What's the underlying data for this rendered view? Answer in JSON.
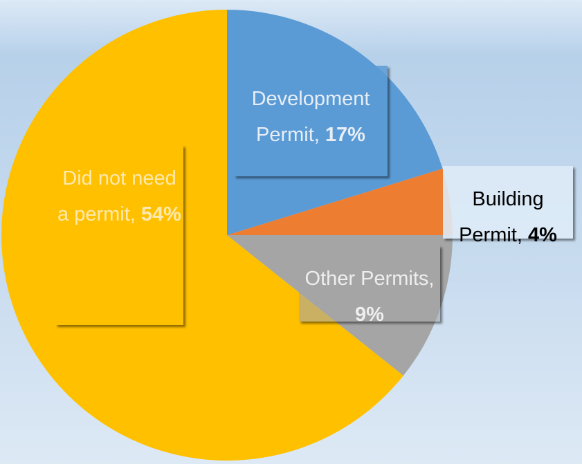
{
  "chart_data": {
    "type": "pie",
    "categories": [
      "Development Permit,",
      "Building Permit,",
      "Other Permits,",
      "Did not need a permit,"
    ],
    "values": [
      17,
      4,
      9,
      54
    ],
    "value_labels": [
      "17%",
      "4%",
      "9%",
      "54%"
    ],
    "colors": [
      "#5b9bd5",
      "#ed7d31",
      "#a5a5a5",
      "#ffc000"
    ]
  }
}
